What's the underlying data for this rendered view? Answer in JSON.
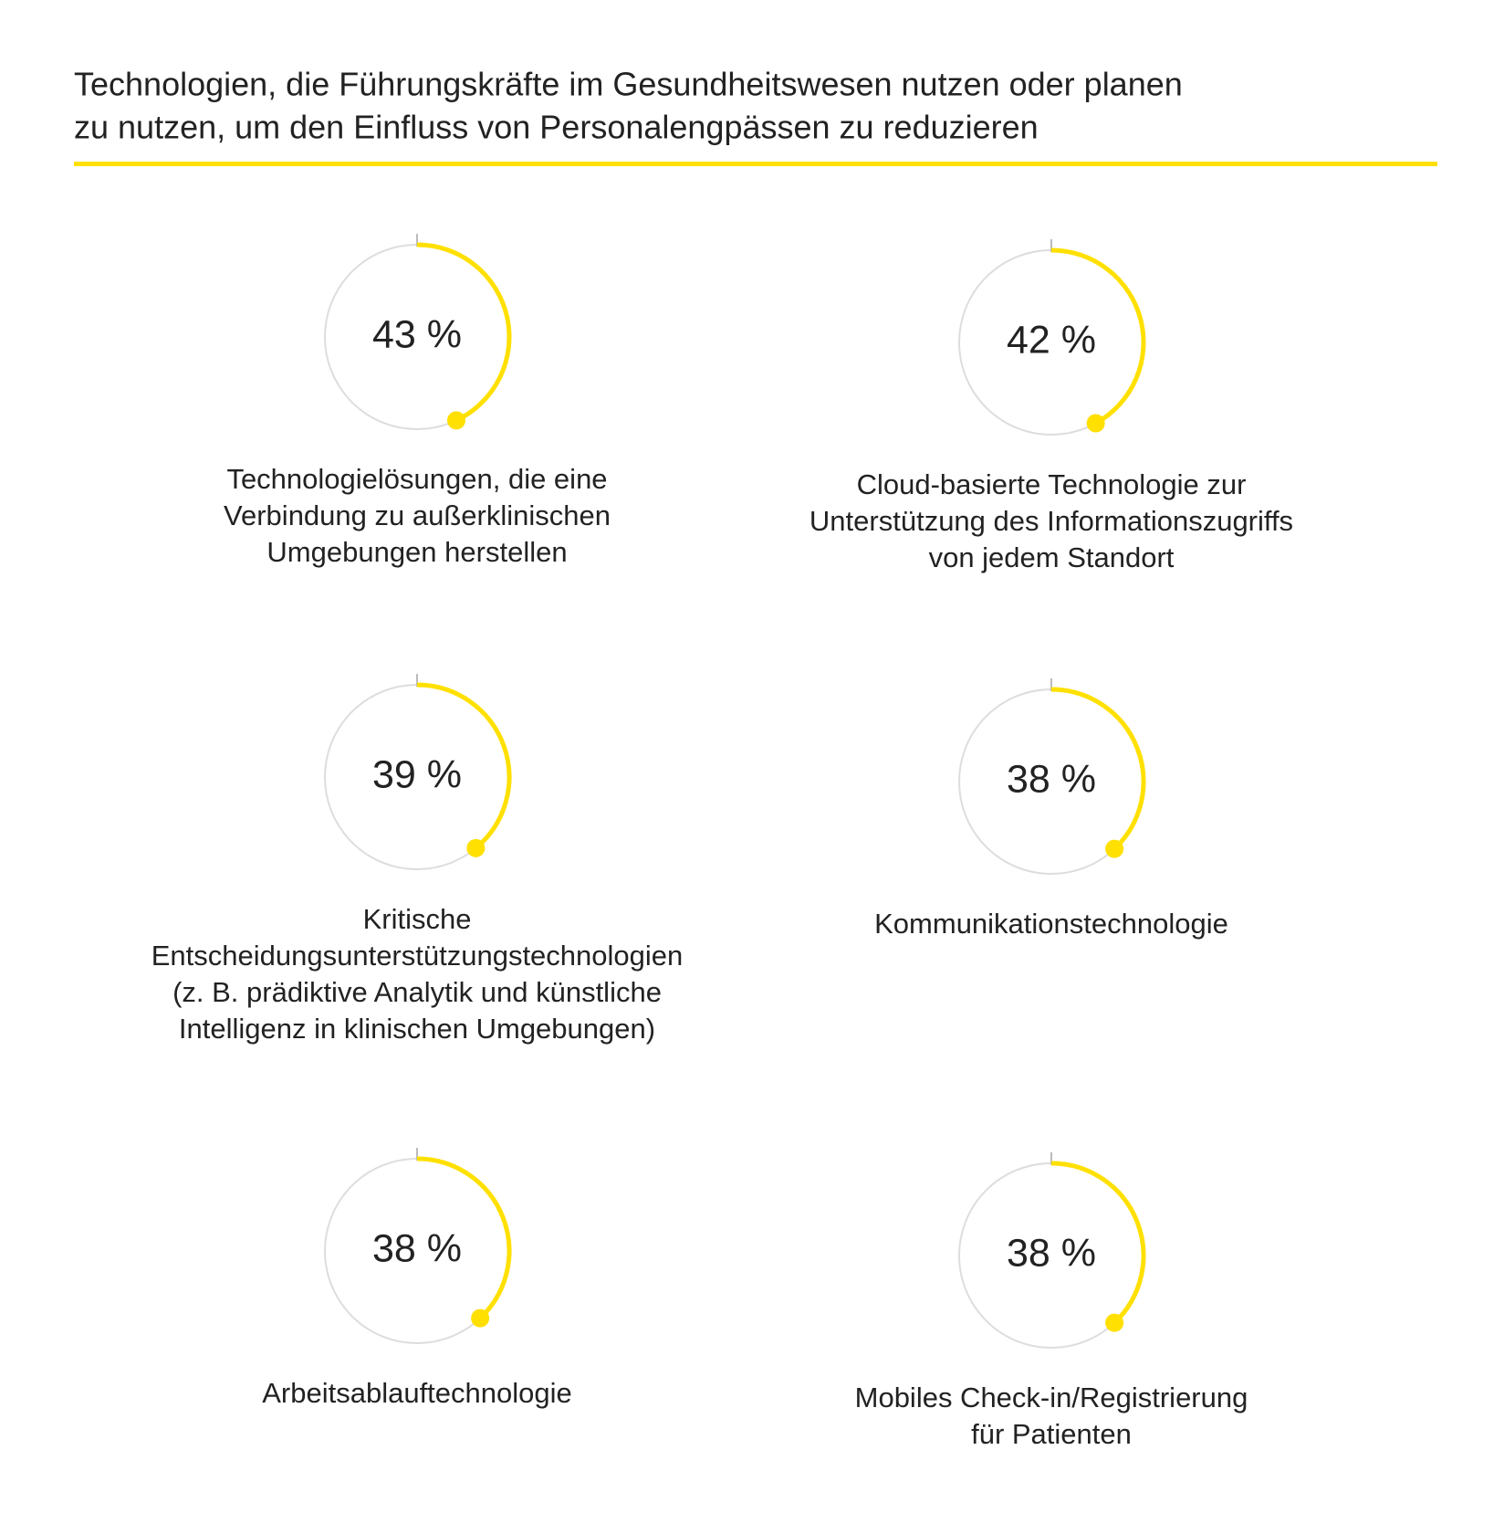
{
  "chart_data": {
    "type": "ring",
    "title": [
      "Technologien, die Führungskräfte im Gesundheitswesen nutzen oder planen",
      "zu nutzen, um den Einfluss von Personalengpässen zu reduzieren"
    ],
    "categories": [
      [
        "Technologielösungen, die eine",
        "Verbindung zu außerklinischen",
        "Umgebungen herstellen"
      ],
      [
        "Cloud-basierte Technologie zur",
        "Unterstützung des Informationszugriffs",
        "von jedem Standort"
      ],
      [
        "Kritische",
        "Entscheidungsunterstützungstechnologien",
        "(z. B. prädiktive Analytik und künstliche",
        "Intelligenz in klinischen Umgebungen)"
      ],
      [
        "Kommunikationstechnologie"
      ],
      [
        "Arbeitsablauftechnologie"
      ],
      [
        "Mobiles Check-in/Registrierung",
        "für Patienten"
      ]
    ],
    "values": [
      43,
      42,
      39,
      38,
      38,
      38
    ],
    "value_labels": [
      "43 %",
      "42 %",
      "39 %",
      "38 %",
      "38 %",
      "38 %"
    ],
    "ylim": [
      0,
      100
    ],
    "color": "#ffe000"
  }
}
